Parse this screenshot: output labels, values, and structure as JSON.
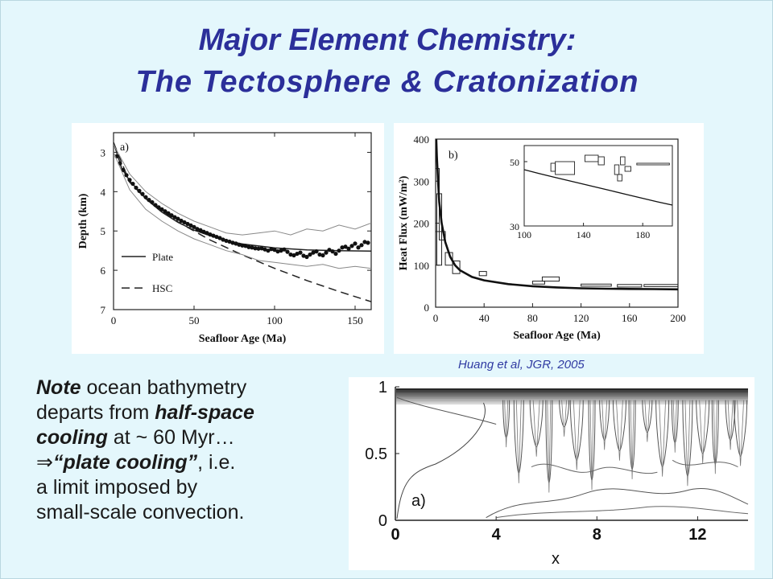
{
  "slide": {
    "title_line1": "Major Element Chemistry:",
    "title_line2": "The Tectosphere & Cratonization",
    "citation": "Huang et al, JGR, 2005",
    "note": {
      "w1": "Note",
      "t1": " ocean bathymetry",
      "t2": "departs from ",
      "w2": "half-space",
      "w3": "cooling",
      "t3": " at ~ 60 Myr…",
      "arrow": "⇒",
      "w4": "“plate cooling”",
      "t4": ", i.e.",
      "t5": "a limit imposed by",
      "t6": "small-scale convection."
    },
    "colors": {
      "background": "#e4f7fc",
      "title": "#2b2f9a",
      "citation": "#2f3aa2"
    }
  },
  "chart_data": [
    {
      "type": "line",
      "panel_label": "a)",
      "xlabel": "Seafloor Age (Ma)",
      "ylabel": "Depth (km)",
      "xlim": [
        0,
        160
      ],
      "ylim": [
        7,
        2.5
      ],
      "xticks": [
        0,
        50,
        100,
        150
      ],
      "yticks": [
        3,
        4,
        5,
        6,
        7
      ],
      "legend": {
        "placement": "bottom-left",
        "entries": [
          "Plate",
          "HSC"
        ]
      },
      "series": [
        {
          "name": "Plate",
          "style": "solid",
          "x": [
            0,
            5,
            10,
            20,
            30,
            40,
            50,
            60,
            70,
            80,
            100,
            120,
            140,
            160
          ],
          "y": [
            2.75,
            3.4,
            3.72,
            4.18,
            4.52,
            4.78,
            4.98,
            5.12,
            5.25,
            5.33,
            5.43,
            5.48,
            5.5,
            5.51
          ]
        },
        {
          "name": "HSC",
          "style": "dashed",
          "x": [
            0,
            10,
            20,
            40,
            60,
            80,
            100,
            120,
            140,
            160
          ],
          "y": [
            2.75,
            3.76,
            4.18,
            4.77,
            5.23,
            5.61,
            5.95,
            6.26,
            6.54,
            6.8
          ]
        },
        {
          "style": "dots",
          "x": [
            2,
            4,
            6,
            8,
            10,
            12,
            14,
            16,
            18,
            20,
            22,
            24,
            26,
            28,
            30,
            32,
            34,
            36,
            38,
            40,
            42,
            44,
            46,
            48,
            50,
            52,
            54,
            56,
            58,
            60,
            62,
            64,
            66,
            68,
            70,
            72,
            74,
            76,
            78,
            80,
            82,
            84,
            86,
            88,
            90,
            92,
            94,
            96,
            98,
            100,
            102,
            104,
            106,
            108,
            110,
            112,
            114,
            116,
            118,
            120,
            122,
            124,
            126,
            128,
            130,
            132,
            134,
            136,
            138,
            140,
            142,
            144,
            146,
            148,
            150,
            152,
            154,
            156,
            158
          ],
          "y": [
            3.1,
            3.28,
            3.45,
            3.58,
            3.7,
            3.8,
            3.9,
            3.98,
            4.06,
            4.14,
            4.21,
            4.27,
            4.34,
            4.4,
            4.45,
            4.5,
            4.55,
            4.6,
            4.65,
            4.69,
            4.74,
            4.78,
            4.82,
            4.86,
            4.9,
            4.95,
            4.98,
            5.02,
            5.05,
            5.09,
            5.12,
            5.15,
            5.18,
            5.22,
            5.25,
            5.27,
            5.3,
            5.32,
            5.35,
            5.37,
            5.38,
            5.41,
            5.42,
            5.44,
            5.45,
            5.44,
            5.47,
            5.5,
            5.46,
            5.48,
            5.52,
            5.5,
            5.47,
            5.53,
            5.6,
            5.62,
            5.58,
            5.55,
            5.63,
            5.66,
            5.6,
            5.55,
            5.52,
            5.6,
            5.62,
            5.55,
            5.48,
            5.52,
            5.58,
            5.5,
            5.42,
            5.4,
            5.45,
            5.38,
            5.32,
            5.42,
            5.36,
            5.28,
            5.3
          ]
        },
        {
          "style": "envelope-upper",
          "x": [
            0,
            10,
            20,
            30,
            40,
            50,
            60,
            70,
            80,
            90,
            100,
            110,
            120,
            130,
            140,
            150,
            160
          ],
          "y": [
            2.8,
            3.55,
            4.0,
            4.3,
            4.55,
            4.75,
            4.9,
            5.05,
            5.1,
            5.05,
            5.0,
            5.1,
            4.95,
            5.0,
            4.85,
            4.95,
            4.8
          ]
        },
        {
          "style": "envelope-lower",
          "x": [
            0,
            10,
            20,
            30,
            40,
            50,
            60,
            70,
            80,
            90,
            100,
            110,
            120,
            130,
            140,
            150,
            160
          ],
          "y": [
            3.0,
            3.95,
            4.45,
            4.75,
            5.0,
            5.2,
            5.35,
            5.5,
            5.6,
            5.75,
            5.8,
            5.85,
            5.9,
            5.85,
            5.95,
            5.9,
            5.95
          ]
        }
      ]
    },
    {
      "type": "line",
      "panel_label": "b)",
      "xlabel": "Seafloor Age (Ma)",
      "ylabel": "Heat Flux (mW/m²)",
      "xlim": [
        0,
        200
      ],
      "ylim": [
        0,
        400
      ],
      "xticks": [
        0,
        40,
        80,
        120,
        160,
        200
      ],
      "yticks": [
        0,
        100,
        200,
        300,
        400
      ],
      "curve": {
        "x": [
          0.5,
          1,
          2,
          3,
          5,
          8,
          12,
          16,
          20,
          30,
          40,
          60,
          80,
          100,
          120,
          140,
          160,
          180,
          200
        ],
        "y": [
          400,
          360,
          300,
          250,
          200,
          155,
          120,
          100,
          88,
          72,
          64,
          55,
          50,
          47,
          45,
          44,
          43.5,
          43,
          42.5
        ]
      },
      "boxes": [
        {
          "x0": 0,
          "x1": 3,
          "y0": 180,
          "y1": 330
        },
        {
          "x0": 1,
          "x1": 5,
          "y0": 100,
          "y1": 270
        },
        {
          "x0": 3,
          "x1": 8,
          "y0": 160,
          "y1": 180
        },
        {
          "x0": 8,
          "x1": 14,
          "y0": 100,
          "y1": 130
        },
        {
          "x0": 14,
          "x1": 20,
          "y0": 80,
          "y1": 110
        },
        {
          "x0": 36,
          "x1": 42,
          "y0": 75,
          "y1": 85
        },
        {
          "x0": 80,
          "x1": 90,
          "y0": 55,
          "y1": 62
        },
        {
          "x0": 88,
          "x1": 102,
          "y0": 62,
          "y1": 72
        },
        {
          "x0": 120,
          "x1": 145,
          "y0": 50,
          "y1": 55
        },
        {
          "x0": 150,
          "x1": 170,
          "y0": 48,
          "y1": 54
        },
        {
          "x0": 172,
          "x1": 200,
          "y0": 49,
          "y1": 54
        }
      ],
      "inset": {
        "xlim": [
          100,
          200
        ],
        "ylim": [
          30,
          55
        ],
        "xticks": [
          100,
          140,
          180
        ],
        "yticks": [
          30,
          50
        ],
        "curve": {
          "x": [
            100,
            110,
            120,
            130,
            140,
            150,
            160,
            170,
            180,
            190,
            200
          ],
          "y": [
            47.5,
            46.3,
            45.2,
            44.1,
            43.0,
            41.9,
            40.8,
            39.7,
            38.6,
            37.5,
            36.5
          ]
        },
        "boxes": [
          {
            "x0": 118,
            "x1": 121,
            "y0": 47,
            "y1": 49.5
          },
          {
            "x0": 121,
            "x1": 134,
            "y0": 46,
            "y1": 50
          },
          {
            "x0": 141,
            "x1": 150,
            "y0": 50,
            "y1": 52
          },
          {
            "x0": 150,
            "x1": 154,
            "y0": 49,
            "y1": 51.5
          },
          {
            "x0": 161,
            "x1": 164,
            "y0": 46,
            "y1": 49
          },
          {
            "x0": 165,
            "x1": 168,
            "y0": 49,
            "y1": 51.5
          },
          {
            "x0": 163,
            "x1": 166,
            "y0": 44,
            "y1": 46
          },
          {
            "x0": 168,
            "x1": 172,
            "y0": 47,
            "y1": 48.5
          },
          {
            "x0": 176,
            "x1": 198,
            "y0": 49,
            "y1": 49.5
          }
        ]
      }
    },
    {
      "type": "contour",
      "panel_label": "a)",
      "xlabel": "x",
      "xlim": [
        0,
        14
      ],
      "ylim": [
        0,
        1
      ],
      "xticks": [
        0,
        4,
        8,
        12
      ],
      "yticks": [
        0,
        0.5,
        1
      ]
    }
  ]
}
